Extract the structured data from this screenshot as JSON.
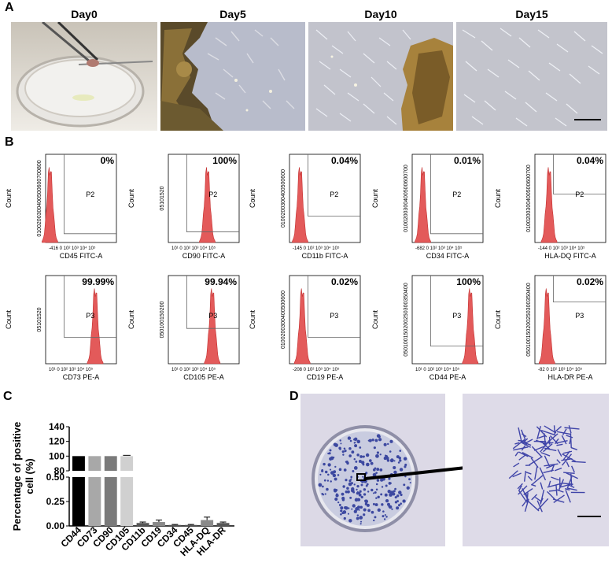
{
  "panels": {
    "a": "A",
    "b": "B",
    "c": "C",
    "d": "D"
  },
  "panel_a": {
    "days": [
      "Day0",
      "Day5",
      "Day10",
      "Day15"
    ]
  },
  "panel_b": {
    "plots": [
      {
        "pct": "0%",
        "gate": "P2",
        "xlabel": "CD45 FITC-A",
        "neg": "-416",
        "yticks": [
          "0",
          "100",
          "200",
          "300",
          "400",
          "500",
          "600",
          "700",
          "800"
        ],
        "peak": 0.06,
        "gate_level": 0.1
      },
      {
        "pct": "100%",
        "gate": "P2",
        "xlabel": "CD90 FITC-A",
        "neg": "",
        "yticks": [
          "0",
          "5",
          "10",
          "15",
          "20"
        ],
        "peak": 0.55,
        "gate_level": 0.12
      },
      {
        "pct": "0.04%",
        "gate": "P2",
        "xlabel": "CD11b FITC-A",
        "neg": "-145",
        "yticks": [
          "0",
          "100",
          "200",
          "300",
          "400",
          "500",
          "600"
        ],
        "peak": 0.15,
        "gate_level": 0.3
      },
      {
        "pct": "0.01%",
        "gate": "P2",
        "xlabel": "CD34 FITC-A",
        "neg": "-682",
        "yticks": [
          "0",
          "100",
          "200",
          "300",
          "400",
          "500",
          "600",
          "700"
        ],
        "peak": 0.15,
        "gate_level": 0.1
      },
      {
        "pct": "0.04%",
        "gate": "P2",
        "xlabel": "HLA-DQ FITC-A",
        "neg": "-144",
        "yticks": [
          "0",
          "100",
          "200",
          "300",
          "400",
          "500",
          "600",
          "700"
        ],
        "peak": 0.2,
        "gate_level": 0.55
      },
      {
        "pct": "99.99%",
        "gate": "P3",
        "xlabel": "CD73 PE-A",
        "neg": "",
        "yticks": [
          "0",
          "5",
          "10",
          "15",
          "20"
        ],
        "peak": 0.7,
        "gate_level": 0.3
      },
      {
        "pct": "99.94%",
        "gate": "P3",
        "xlabel": "CD105 PE-A",
        "neg": "",
        "yticks": [
          "0",
          "50",
          "100",
          "150",
          "200"
        ],
        "peak": 0.62,
        "gate_level": 0.4
      },
      {
        "pct": "0.02%",
        "gate": "P3",
        "xlabel": "CD19 PE-A",
        "neg": "-208",
        "yticks": [
          "0",
          "100",
          "200",
          "300",
          "400",
          "500",
          "600"
        ],
        "peak": 0.18,
        "gate_level": 0.3
      },
      {
        "pct": "100%",
        "gate": "P3",
        "xlabel": "CD44 PE-A",
        "neg": "",
        "yticks": [
          "0",
          "50",
          "100",
          "150",
          "200",
          "250",
          "300",
          "350",
          "400"
        ],
        "peak": 0.82,
        "gate_level": 0.2
      },
      {
        "pct": "0.02%",
        "gate": "P3",
        "xlabel": "HLA-DR PE-A",
        "neg": "-82",
        "yticks": [
          "0",
          "50",
          "100",
          "150",
          "200",
          "250",
          "300",
          "350",
          "400"
        ],
        "peak": 0.17,
        "gate_level": 0.7
      }
    ],
    "ylabel": "Count"
  },
  "chart_data": {
    "type": "bar",
    "categories": [
      "CD44",
      "CD73",
      "CD90",
      "CD105",
      "CD11b",
      "CD19",
      "CD34",
      "CD45",
      "HLA-DQ",
      "HLA-DR"
    ],
    "values": [
      100,
      100,
      100,
      100,
      0.03,
      0.04,
      0.01,
      0.01,
      0.06,
      0.03
    ],
    "errors": [
      0,
      0,
      0,
      0.3,
      0.01,
      0.02,
      0.005,
      0.005,
      0.03,
      0.01
    ],
    "colors": [
      "#000000",
      "#a8a8a8",
      "#7a7a7a",
      "#d0d0d0",
      "#555555",
      "#8a8a8a",
      "#555555",
      "#555555",
      "#8a8a8a",
      "#555555"
    ],
    "ylabel": "Percentage of positive cell (%)",
    "xlabel": "",
    "title": "",
    "broken_axis": true,
    "ylim_lower": [
      0,
      0.5
    ],
    "ylim_upper": [
      80,
      140
    ],
    "yticks_lower": [
      "0.00",
      "0.25",
      "0.50"
    ],
    "yticks_upper": [
      "80",
      "100",
      "120",
      "140"
    ]
  }
}
